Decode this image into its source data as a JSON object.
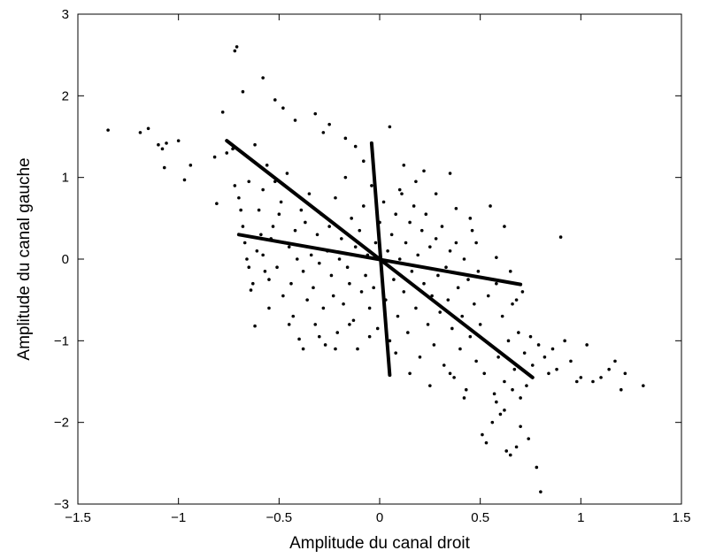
{
  "chart_data": {
    "type": "scatter",
    "title": "",
    "xlabel": "Amplitude du canal droit",
    "ylabel": "Amplitude du canal gauche",
    "xlim": [
      -1.5,
      1.5
    ],
    "ylim": [
      -3,
      3
    ],
    "xticks": [
      -1.5,
      -1,
      -0.5,
      0,
      0.5,
      1,
      1.5
    ],
    "xtick_labels": [
      "−1.5",
      "−1",
      "−0.5",
      "0",
      "0.5",
      "1",
      "1.5"
    ],
    "yticks": [
      -3,
      -2,
      -1,
      0,
      1,
      2,
      3
    ],
    "ytick_labels": [
      "−3",
      "−2",
      "−1",
      "0",
      "1",
      "2",
      "3"
    ],
    "grid": false,
    "marker_color": "#000000",
    "line_color": "#000000",
    "lines": [
      {
        "x": [
          -0.76,
          0.76
        ],
        "y": [
          1.45,
          -1.45
        ]
      },
      {
        "x": [
          -0.04,
          0.05
        ],
        "y": [
          1.42,
          -1.42
        ]
      },
      {
        "x": [
          -0.7,
          0.7
        ],
        "y": [
          0.3,
          -0.31
        ]
      }
    ],
    "points": [
      [
        -1.35,
        1.58
      ],
      [
        -1.19,
        1.55
      ],
      [
        -1.15,
        1.6
      ],
      [
        -1.1,
        1.4
      ],
      [
        -1.08,
        1.35
      ],
      [
        -1.07,
        1.12
      ],
      [
        -1.06,
        1.42
      ],
      [
        -1.0,
        1.45
      ],
      [
        -0.97,
        0.97
      ],
      [
        -0.94,
        1.15
      ],
      [
        -0.82,
        1.25
      ],
      [
        -0.81,
        0.68
      ],
      [
        -0.78,
        1.8
      ],
      [
        -0.76,
        1.3
      ],
      [
        -0.73,
        1.35
      ],
      [
        -0.72,
        0.9
      ],
      [
        -0.7,
        0.75
      ],
      [
        -0.69,
        0.6
      ],
      [
        -0.68,
        0.4
      ],
      [
        -0.67,
        0.2
      ],
      [
        -0.66,
        0.0
      ],
      [
        -0.65,
        -0.1
      ],
      [
        -0.64,
        -0.38
      ],
      [
        -0.63,
        -0.3
      ],
      [
        -0.62,
        -0.82
      ],
      [
        -0.61,
        0.1
      ],
      [
        -0.6,
        0.6
      ],
      [
        -0.59,
        0.3
      ],
      [
        -0.58,
        0.05
      ],
      [
        -0.57,
        -0.15
      ],
      [
        -0.56,
        1.15
      ],
      [
        -0.55,
        -0.25
      ],
      [
        -0.55,
        -0.6
      ],
      [
        -0.53,
        0.4
      ],
      [
        -0.52,
        0.95
      ],
      [
        -0.51,
        -0.1
      ],
      [
        -0.5,
        0.55
      ],
      [
        -0.49,
        0.7
      ],
      [
        -0.48,
        -0.45
      ],
      [
        -0.47,
        0.2
      ],
      [
        -0.46,
        1.05
      ],
      [
        -0.45,
        0.15
      ],
      [
        -0.44,
        -0.3
      ],
      [
        -0.43,
        -0.7
      ],
      [
        -0.42,
        0.35
      ],
      [
        -0.41,
        0.0
      ],
      [
        -0.4,
        -0.98
      ],
      [
        -0.39,
        0.6
      ],
      [
        -0.38,
        -0.15
      ],
      [
        -0.37,
        0.45
      ],
      [
        -0.36,
        -0.5
      ],
      [
        -0.35,
        0.8
      ],
      [
        -0.34,
        0.05
      ],
      [
        -0.33,
        -0.35
      ],
      [
        -0.32,
        -0.8
      ],
      [
        -0.31,
        0.3
      ],
      [
        -0.3,
        -0.05
      ],
      [
        -0.29,
        0.55
      ],
      [
        -0.28,
        -0.6
      ],
      [
        -0.27,
        -1.05
      ],
      [
        -0.26,
        0.1
      ],
      [
        -0.25,
        0.4
      ],
      [
        -0.24,
        -0.2
      ],
      [
        -0.23,
        -0.45
      ],
      [
        -0.22,
        0.75
      ],
      [
        -0.21,
        -0.9
      ],
      [
        -0.2,
        0.0
      ],
      [
        -0.19,
        0.25
      ],
      [
        -0.18,
        -0.55
      ],
      [
        -0.17,
        1.0
      ],
      [
        -0.16,
        -0.1
      ],
      [
        -0.15,
        -0.3
      ],
      [
        -0.14,
        0.5
      ],
      [
        -0.13,
        -0.75
      ],
      [
        -0.12,
        0.15
      ],
      [
        -0.11,
        -1.1
      ],
      [
        -0.1,
        0.35
      ],
      [
        -0.09,
        -0.4
      ],
      [
        -0.08,
        0.65
      ],
      [
        -0.07,
        -0.2
      ],
      [
        -0.06,
        0.05
      ],
      [
        -0.05,
        -0.6
      ],
      [
        -0.04,
        0.9
      ],
      [
        -0.03,
        -0.35
      ],
      [
        -0.02,
        0.2
      ],
      [
        -0.01,
        -0.85
      ],
      [
        0.0,
        0.45
      ],
      [
        0.01,
        -0.15
      ],
      [
        0.02,
        0.7
      ],
      [
        0.03,
        -0.5
      ],
      [
        0.04,
        0.1
      ],
      [
        0.05,
        -1.0
      ],
      [
        0.06,
        0.3
      ],
      [
        0.07,
        -0.25
      ],
      [
        0.08,
        0.55
      ],
      [
        0.09,
        -0.7
      ],
      [
        0.1,
        0.0
      ],
      [
        0.11,
        0.8
      ],
      [
        0.12,
        -0.4
      ],
      [
        0.13,
        0.2
      ],
      [
        0.14,
        -0.9
      ],
      [
        0.15,
        0.45
      ],
      [
        0.16,
        -0.15
      ],
      [
        0.17,
        0.65
      ],
      [
        0.18,
        -0.6
      ],
      [
        0.19,
        0.05
      ],
      [
        0.2,
        -1.2
      ],
      [
        0.21,
        0.35
      ],
      [
        0.22,
        -0.3
      ],
      [
        0.23,
        0.55
      ],
      [
        0.24,
        -0.8
      ],
      [
        0.25,
        0.15
      ],
      [
        0.26,
        -0.45
      ],
      [
        0.27,
        -1.05
      ],
      [
        0.28,
        0.25
      ],
      [
        0.29,
        -0.2
      ],
      [
        0.3,
        -0.65
      ],
      [
        0.31,
        0.4
      ],
      [
        0.32,
        -1.3
      ],
      [
        0.33,
        -0.1
      ],
      [
        0.34,
        -0.5
      ],
      [
        0.35,
        0.1
      ],
      [
        0.36,
        -0.85
      ],
      [
        0.37,
        -1.45
      ],
      [
        0.38,
        0.2
      ],
      [
        0.39,
        -0.35
      ],
      [
        0.4,
        -1.1
      ],
      [
        0.41,
        -0.7
      ],
      [
        0.42,
        0.0
      ],
      [
        0.43,
        -1.6
      ],
      [
        0.44,
        -0.25
      ],
      [
        0.45,
        -0.95
      ],
      [
        0.46,
        0.35
      ],
      [
        0.47,
        -0.55
      ],
      [
        0.48,
        -1.25
      ],
      [
        0.49,
        -0.15
      ],
      [
        0.5,
        -0.8
      ],
      [
        0.51,
        -2.15
      ],
      [
        0.52,
        -1.4
      ],
      [
        0.53,
        -2.25
      ],
      [
        0.54,
        -0.45
      ],
      [
        0.55,
        -1.05
      ],
      [
        0.56,
        -2.0
      ],
      [
        0.57,
        -1.65
      ],
      [
        0.58,
        -0.3
      ],
      [
        0.59,
        -1.2
      ],
      [
        0.6,
        -1.9
      ],
      [
        0.61,
        -0.7
      ],
      [
        0.62,
        -1.5
      ],
      [
        0.63,
        -2.35
      ],
      [
        0.64,
        -1.0
      ],
      [
        0.65,
        -2.4
      ],
      [
        0.66,
        -0.55
      ],
      [
        0.67,
        -1.35
      ],
      [
        0.68,
        -2.3
      ],
      [
        0.69,
        -0.9
      ],
      [
        0.7,
        -1.7
      ],
      [
        0.71,
        -0.4
      ],
      [
        0.72,
        -1.15
      ],
      [
        0.73,
        -1.55
      ],
      [
        0.75,
        -0.95
      ],
      [
        0.76,
        -1.3
      ],
      [
        0.78,
        -2.55
      ],
      [
        0.79,
        -1.05
      ],
      [
        0.8,
        -2.85
      ],
      [
        0.82,
        -1.2
      ],
      [
        0.84,
        -1.4
      ],
      [
        0.86,
        -1.1
      ],
      [
        0.88,
        -1.35
      ],
      [
        0.9,
        0.27
      ],
      [
        0.92,
        -1.0
      ],
      [
        0.95,
        -1.25
      ],
      [
        0.98,
        -1.5
      ],
      [
        1.0,
        -1.45
      ],
      [
        1.03,
        -1.05
      ],
      [
        1.06,
        -1.5
      ],
      [
        1.1,
        -1.45
      ],
      [
        1.14,
        -1.35
      ],
      [
        1.17,
        -1.25
      ],
      [
        1.2,
        -1.6
      ],
      [
        1.22,
        -1.4
      ],
      [
        1.31,
        -1.55
      ],
      [
        -0.72,
        2.55
      ],
      [
        -0.71,
        2.6
      ],
      [
        -0.68,
        2.05
      ],
      [
        -0.58,
        2.22
      ],
      [
        -0.52,
        1.95
      ],
      [
        -0.48,
        1.85
      ],
      [
        -0.42,
        1.7
      ],
      [
        -0.32,
        1.78
      ],
      [
        -0.28,
        1.55
      ],
      [
        -0.25,
        1.65
      ],
      [
        -0.17,
        1.48
      ],
      [
        -0.12,
        1.38
      ],
      [
        -0.08,
        1.2
      ],
      [
        0.05,
        1.62
      ],
      [
        0.1,
        0.85
      ],
      [
        0.22,
        1.08
      ],
      [
        0.35,
        1.05
      ],
      [
        0.38,
        0.62
      ],
      [
        0.45,
        0.5
      ],
      [
        0.48,
        0.2
      ],
      [
        0.55,
        0.65
      ],
      [
        0.58,
        0.02
      ],
      [
        0.62,
        0.4
      ],
      [
        0.65,
        -0.15
      ],
      [
        0.68,
        -0.5
      ],
      [
        0.28,
        0.8
      ],
      [
        0.12,
        1.15
      ],
      [
        0.18,
        0.95
      ],
      [
        -0.65,
        0.95
      ],
      [
        -0.62,
        1.4
      ],
      [
        -0.58,
        0.85
      ],
      [
        -0.54,
        0.25
      ],
      [
        -0.45,
        -0.8
      ],
      [
        -0.38,
        -1.1
      ],
      [
        -0.3,
        -0.95
      ],
      [
        -0.22,
        -1.1
      ],
      [
        -0.15,
        -0.8
      ],
      [
        -0.05,
        -0.95
      ],
      [
        0.08,
        -1.15
      ],
      [
        0.15,
        -1.4
      ],
      [
        0.25,
        -1.55
      ],
      [
        0.35,
        -1.4
      ],
      [
        0.42,
        -1.7
      ],
      [
        0.58,
        -1.75
      ],
      [
        0.62,
        -1.85
      ],
      [
        0.66,
        -1.6
      ],
      [
        0.7,
        -2.05
      ],
      [
        0.74,
        -2.2
      ]
    ]
  }
}
